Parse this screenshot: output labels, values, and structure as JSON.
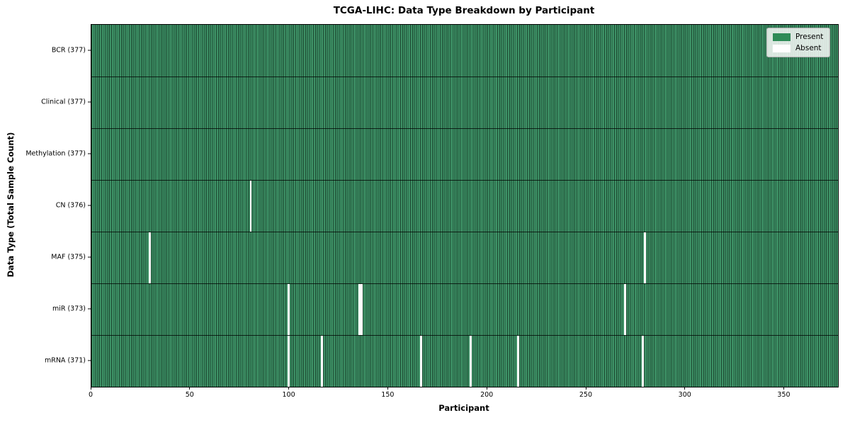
{
  "title": "TCGA-LIHC: Data Type Breakdown by Participant",
  "chart_data": {
    "type": "heatmap",
    "title": "TCGA-LIHC: Data Type Breakdown by Participant",
    "xlabel": "Participant",
    "ylabel": "Data Type (Total Sample Count)",
    "x_range": [
      0,
      377
    ],
    "x_ticks": [
      0,
      50,
      100,
      150,
      200,
      250,
      300,
      350
    ],
    "n_participants": 377,
    "grid": "cell-edges",
    "legend_position": "upper right",
    "legend": [
      {
        "label": "Present",
        "color": "#2e8b57"
      },
      {
        "label": "Absent",
        "color": "#ffffff"
      }
    ],
    "colors": {
      "present": "#2e8b57",
      "absent": "#ffffff",
      "cell_edge": "#1c4730"
    },
    "rows": [
      {
        "name": "BCR",
        "label": "BCR (377)",
        "total": 377,
        "absent_participants": []
      },
      {
        "name": "Clinical",
        "label": "Clinical (377)",
        "total": 377,
        "absent_participants": []
      },
      {
        "name": "Methylation",
        "label": "Methylation (377)",
        "total": 377,
        "absent_participants": []
      },
      {
        "name": "CN",
        "label": "CN (376)",
        "total": 376,
        "absent_participants": [
          80
        ]
      },
      {
        "name": "MAF",
        "label": "MAF (375)",
        "total": 375,
        "absent_participants": [
          29,
          279
        ]
      },
      {
        "name": "miR",
        "label": "miR (373)",
        "total": 373,
        "absent_participants": [
          99,
          135,
          136,
          269
        ]
      },
      {
        "name": "mRNA",
        "label": "mRNA (371)",
        "total": 371,
        "absent_participants": [
          99,
          116,
          166,
          191,
          215,
          278
        ]
      }
    ]
  }
}
